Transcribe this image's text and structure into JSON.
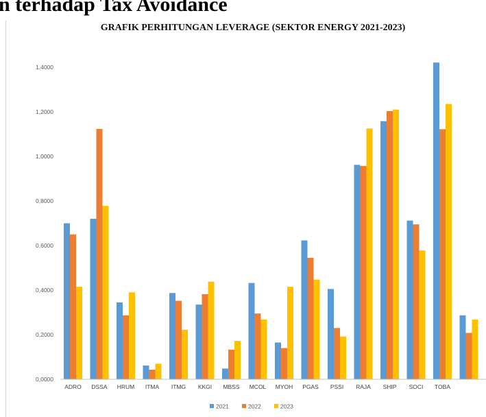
{
  "page_heading": "n terhadap Tax Avoidance",
  "chart_data": {
    "type": "bar",
    "title": "GRAFIK PERHITUNGAN LEVERAGE (SEKTOR ENERGY 2021-2023)",
    "xlabel": "",
    "ylabel": "",
    "ylim": [
      0,
      1.4
    ],
    "yticks": [
      "0,0000",
      "0,2000",
      "0,4000",
      "0,6000",
      "0,8000",
      "1,0000",
      "1,2000",
      "1,4000"
    ],
    "grid": false,
    "legend_position": "bottom",
    "categories": [
      "ADRO",
      "DSSA",
      "HRUM",
      "ITMA",
      "ITMG",
      "KKGI",
      "MBSS",
      "MCOL",
      "MYOH",
      "PGAS",
      "PSSI",
      "RAJA",
      "SHIP",
      "SOCI",
      "TOBA",
      ""
    ],
    "series": [
      {
        "name": "2021",
        "color": "#5b9bd5",
        "values": [
          0.7,
          0.72,
          0.345,
          0.062,
          0.387,
          0.335,
          0.048,
          0.432,
          0.165,
          0.623,
          0.405,
          0.962,
          1.158,
          0.712,
          1.421,
          0.287
        ]
      },
      {
        "name": "2022",
        "color": "#ed7d31",
        "values": [
          0.65,
          1.123,
          0.287,
          0.043,
          0.352,
          0.382,
          0.133,
          0.295,
          0.14,
          0.545,
          0.23,
          0.957,
          1.203,
          0.695,
          1.122,
          0.208
        ]
      },
      {
        "name": "2023",
        "color": "#ffc000",
        "values": [
          0.415,
          0.778,
          0.39,
          0.07,
          0.222,
          0.438,
          0.172,
          0.268,
          0.415,
          0.447,
          0.192,
          1.125,
          1.21,
          0.578,
          1.235,
          0.268
        ]
      }
    ]
  }
}
